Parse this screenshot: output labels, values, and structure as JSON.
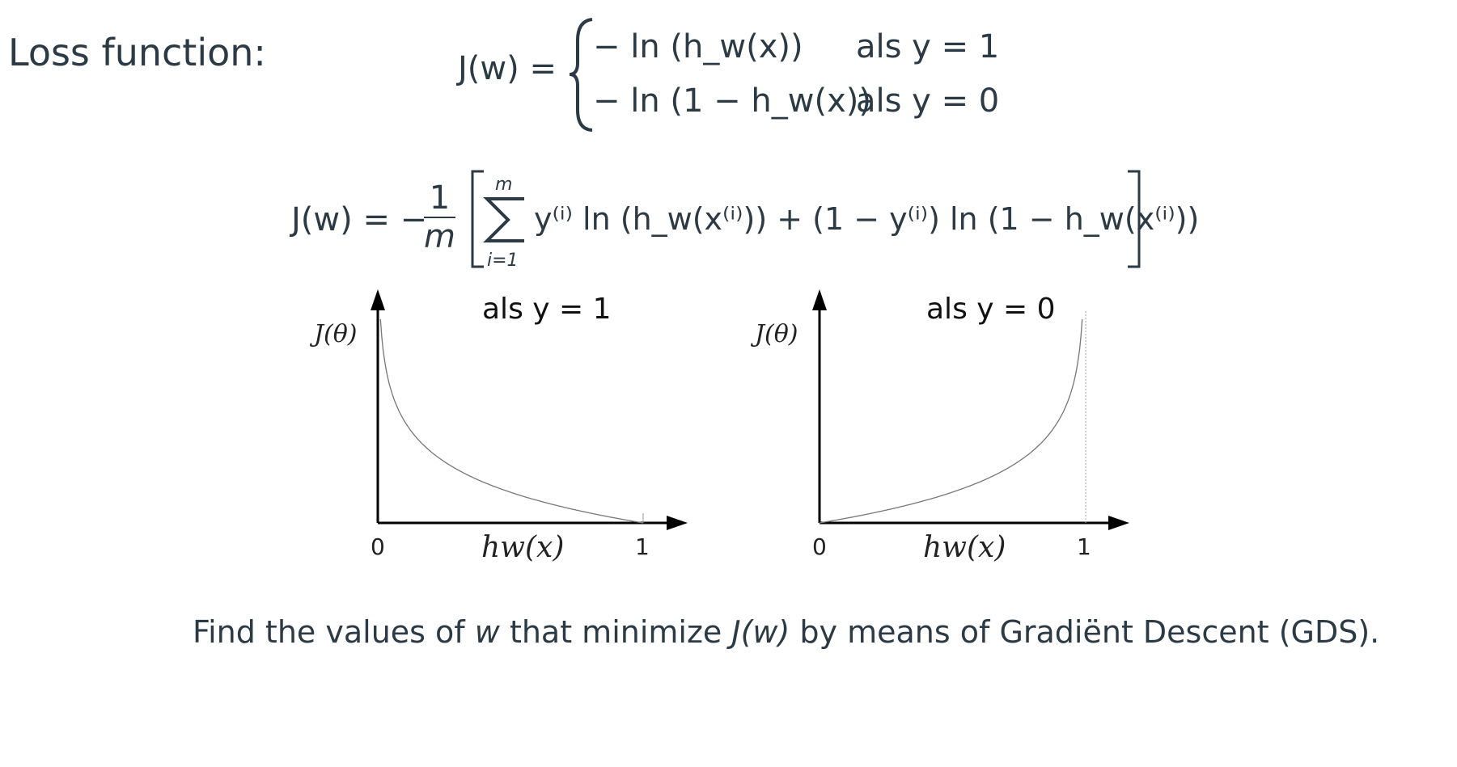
{
  "heading": "Loss function:",
  "piecewise": {
    "lhs": "J(w) =",
    "case1_expr": "− ln (h_w(x))",
    "case1_cond": "als y = 1",
    "case2_expr": "− ln (1 − h_w(x))",
    "case2_cond": "als y = 0"
  },
  "sum_formula": {
    "lhs": "J(w) = −",
    "frac_num": "1",
    "frac_den": "m",
    "upper": "m",
    "lower": "i=1",
    "body": "y⁽ⁱ⁾ ln (h_w(x⁽ⁱ⁾)) + (1 − y⁽ⁱ⁾) ln (1 − h_w(x⁽ⁱ⁾))"
  },
  "charts": {
    "left": {
      "title": "als y = 1",
      "ylabel": "J(θ)",
      "xlabel": "hw(x)",
      "x0": "0",
      "x1": "1"
    },
    "right": {
      "title": "als y = 0",
      "ylabel": "J(θ)",
      "xlabel": "hw(x)",
      "x0": "0",
      "x1": "1"
    }
  },
  "chart_data": [
    {
      "type": "line",
      "title": "als y = 1",
      "xlabel": "hw(x)",
      "ylabel": "J(θ)",
      "xlim": [
        0,
        1
      ],
      "series": [
        {
          "x": [
            0.01,
            0.1,
            0.25,
            0.5,
            0.75,
            1.0
          ],
          "y": [
            4.6,
            2.3,
            1.39,
            0.69,
            0.29,
            0.0
          ]
        }
      ]
    },
    {
      "type": "line",
      "title": "als y = 0",
      "xlabel": "hw(x)",
      "ylabel": "J(θ)",
      "xlim": [
        0,
        1
      ],
      "series": [
        {
          "x": [
            0.0,
            0.25,
            0.5,
            0.75,
            0.9,
            0.99
          ],
          "y": [
            0.0,
            0.29,
            0.69,
            1.39,
            2.3,
            4.6
          ]
        }
      ]
    }
  ],
  "footer": {
    "pre": "Find the values of ",
    "w": "w",
    "mid": " that minimize ",
    "jw": "J(w)",
    "post": " by means of Gradiënt Descent (GDS)."
  }
}
